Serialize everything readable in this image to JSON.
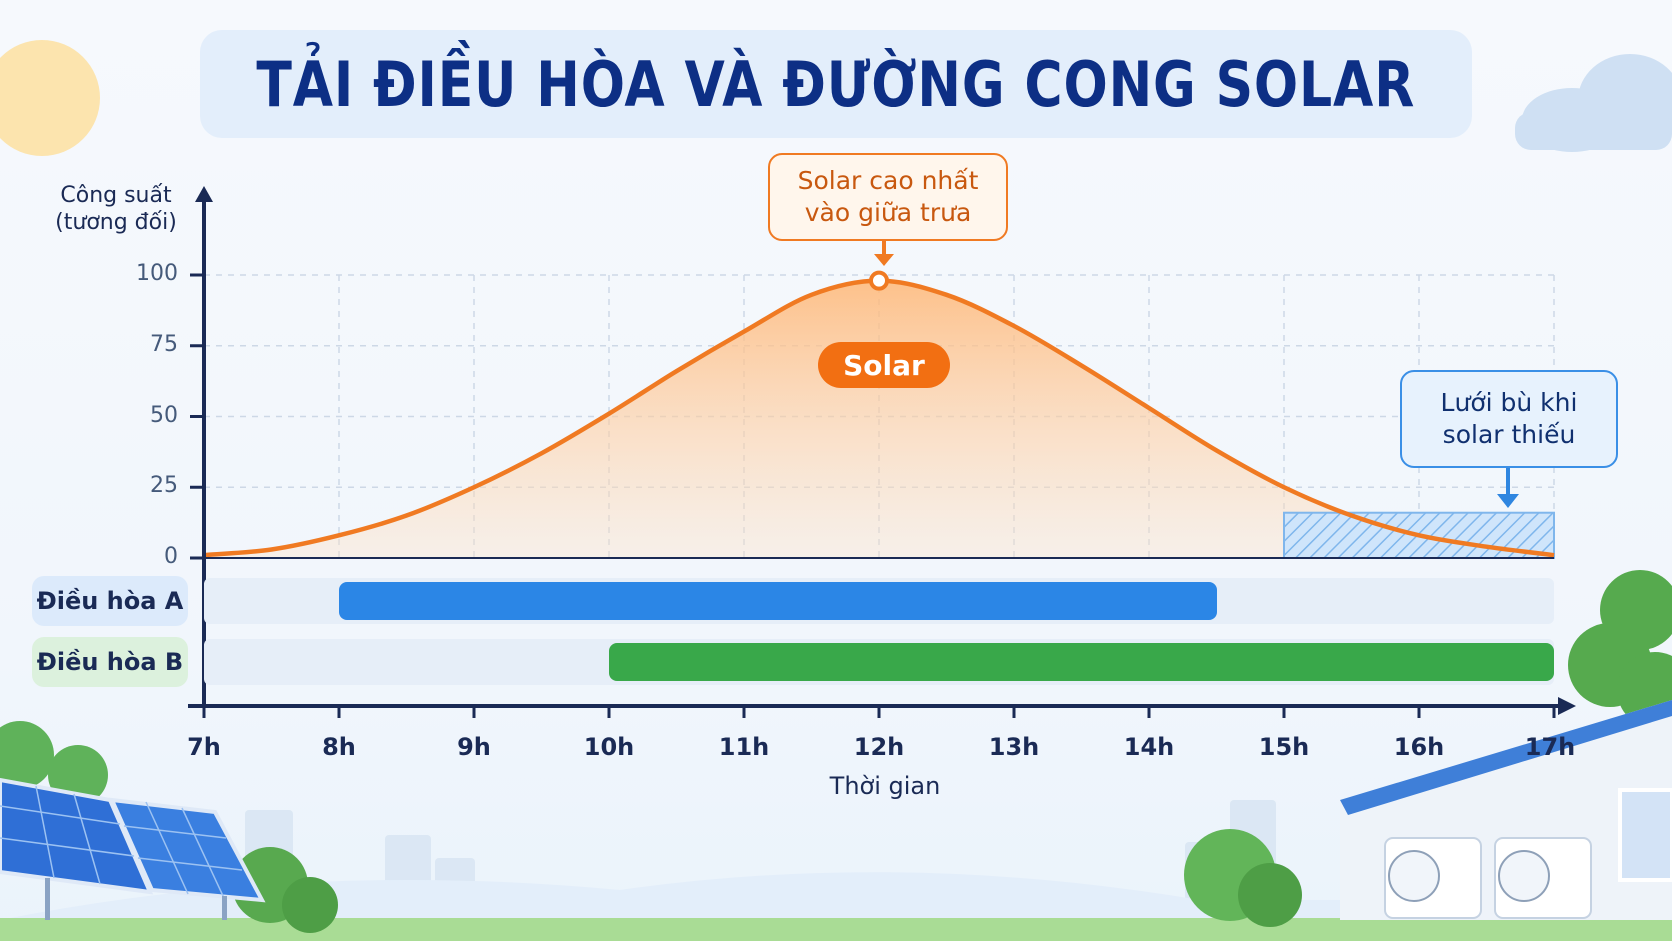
{
  "title": "TẢI ĐIỀU HÒA VÀ ĐƯỜNG CONG SOLAR",
  "y_axis": {
    "label_line1": "Công suất",
    "label_line2": "(tương đối)"
  },
  "x_axis": {
    "label": "Thời gian"
  },
  "callouts": {
    "solar_peak": {
      "line1": "Solar cao nhất",
      "line2": "vào giữa trưa"
    },
    "grid_backup": {
      "line1": "Lưới bù khi",
      "line2": "solar thiếu"
    },
    "solar_area_label": "Solar"
  },
  "rows": {
    "a_label": "Điều hòa A",
    "b_label": "Điều hòa B"
  },
  "colors": {
    "title": "#0d2f85",
    "solar": "#f07a22",
    "solar_fill": "#ffc48f",
    "ac_a": "#2b86e6",
    "ac_b": "#39a84a",
    "grid_hatch": "#7fb6ec",
    "axis": "#1a2a55"
  },
  "chart_data": {
    "type": "area",
    "title": "TẢI ĐIỀU HÒA VÀ ĐƯỜNG CONG SOLAR",
    "xlabel": "Thời gian",
    "ylabel": "Công suất (tương đối)",
    "x_ticks": [
      "7h",
      "8h",
      "9h",
      "10h",
      "11h",
      "12h",
      "13h",
      "14h",
      "15h",
      "16h",
      "17h"
    ],
    "y_ticks": [
      0,
      25,
      50,
      75,
      100
    ],
    "ylim": [
      0,
      100
    ],
    "xlim": [
      7,
      17
    ],
    "grid": true,
    "series": [
      {
        "name": "Solar",
        "x": [
          7,
          7.5,
          8,
          8.5,
          9,
          9.5,
          10,
          10.5,
          11,
          11.5,
          12,
          12.5,
          13,
          13.5,
          14,
          14.5,
          15,
          15.5,
          16,
          16.5,
          17
        ],
        "y": [
          1,
          3,
          8,
          15,
          25,
          37,
          51,
          66,
          80,
          93,
          98,
          93,
          82,
          68,
          53,
          38,
          25,
          15,
          8,
          4,
          1
        ]
      }
    ],
    "bars": [
      {
        "name": "Điều hòa A",
        "start": 8,
        "end": 14.5
      },
      {
        "name": "Điều hòa B",
        "start": 10,
        "end": 17
      }
    ],
    "highlight": {
      "name": "Lưới bù khi solar thiếu",
      "x_start": 15,
      "x_end": 17,
      "y_top": 16
    },
    "annotations": [
      {
        "text": "Solar cao nhất vào giữa trưa",
        "x": 12,
        "y": 98
      }
    ]
  }
}
